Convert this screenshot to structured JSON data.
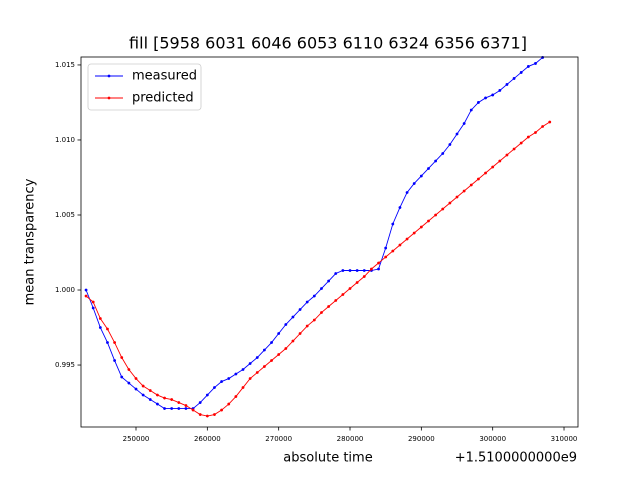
{
  "chart_data": {
    "type": "line",
    "title": "fill [5958 6031 6046 6053 6110 6324 6356 6371]",
    "xlabel": "absolute time",
    "ylabel": "mean transparency",
    "x_offset_label": "+1.5100000000e9",
    "x": [
      243000,
      244000,
      245000,
      246000,
      247000,
      248000,
      249000,
      250000,
      251000,
      252000,
      253000,
      254000,
      255000,
      256000,
      257000,
      258000,
      259000,
      260000,
      261000,
      262000,
      263000,
      264000,
      265000,
      266000,
      267000,
      268000,
      269000,
      270000,
      271000,
      272000,
      273000,
      274000,
      275000,
      276000,
      277000,
      278000,
      279000,
      280000,
      281000,
      282000,
      283000,
      284000,
      285000,
      286000,
      287000,
      288000,
      289000,
      290000,
      291000,
      292000,
      293000,
      294000,
      295000,
      296000,
      297000,
      298000,
      299000,
      300000,
      301000,
      302000,
      303000,
      304000,
      305000,
      306000,
      307000,
      308000
    ],
    "series": [
      {
        "name": "measured",
        "color": "#0000ff",
        "values": [
          1.0,
          0.9988,
          0.9975,
          0.9965,
          0.9953,
          0.9942,
          0.9938,
          0.9934,
          0.993,
          0.9927,
          0.9924,
          0.9921,
          0.9921,
          0.9921,
          0.9921,
          0.9921,
          0.9925,
          0.993,
          0.9935,
          0.9939,
          0.9941,
          0.9944,
          0.9947,
          0.9951,
          0.9955,
          0.996,
          0.9965,
          0.9971,
          0.9977,
          0.9982,
          0.9987,
          0.9992,
          0.9996,
          1.0001,
          1.0006,
          1.0011,
          1.0013,
          1.0013,
          1.0013,
          1.0013,
          1.0013,
          1.0014,
          1.0028,
          1.0044,
          1.0055,
          1.0065,
          1.0071,
          1.0076,
          1.0081,
          1.0086,
          1.0091,
          1.0097,
          1.0104,
          1.0111,
          1.012,
          1.0125,
          1.0128,
          1.013,
          1.0133,
          1.0137,
          1.0141,
          1.0145,
          1.0149,
          1.0151,
          1.0155,
          null
        ]
      },
      {
        "name": "predicted",
        "color": "#ff0000",
        "values": [
          0.9996,
          0.9992,
          0.9981,
          0.9974,
          0.9965,
          0.9955,
          0.9947,
          0.9941,
          0.9936,
          0.9933,
          0.993,
          0.9928,
          0.9927,
          0.9925,
          0.9923,
          0.992,
          0.9917,
          0.9916,
          0.9917,
          0.992,
          0.9924,
          0.9929,
          0.9935,
          0.9941,
          0.9945,
          0.9949,
          0.9953,
          0.9957,
          0.9961,
          0.9966,
          0.9971,
          0.9976,
          0.998,
          0.9985,
          0.9989,
          0.9993,
          0.9997,
          1.0001,
          1.0005,
          1.0009,
          1.0014,
          1.0018,
          1.0022,
          1.0026,
          1.003,
          1.0034,
          1.0038,
          1.0042,
          1.0046,
          1.005,
          1.0054,
          1.0058,
          1.0062,
          1.0066,
          1.007,
          1.0074,
          1.0078,
          1.0082,
          1.0086,
          1.009,
          1.0094,
          1.0098,
          1.0102,
          1.0105,
          1.0109,
          1.0112
        ]
      }
    ],
    "xlim": [
      242290,
      311960
    ],
    "ylim": [
      0.99087,
      1.01553
    ],
    "xticks": [
      250000,
      260000,
      270000,
      280000,
      290000,
      300000,
      310000
    ],
    "yticks": [
      0.995,
      {
        "value": 1.0,
        "label": "1.000"
      },
      1.005,
      {
        "value": 1.01,
        "label": "1.010"
      },
      1.015
    ],
    "legend": "upper left"
  }
}
